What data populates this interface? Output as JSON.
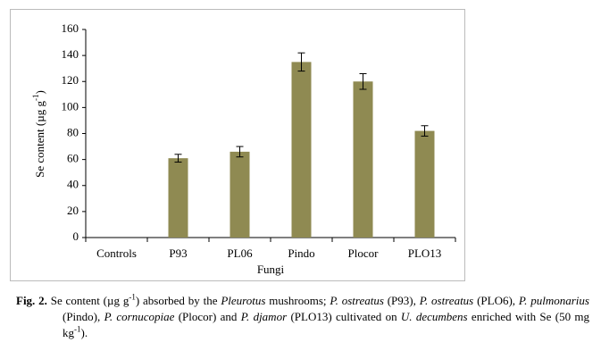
{
  "chart_data": {
    "type": "bar",
    "x_label": "Fungi",
    "y_label": "Se content  (µg g",
    "y_label_sup": "-1",
    "y_label_end": ")",
    "categories": [
      "Controls",
      "P93",
      "PL06",
      "Pindo",
      "Plocor",
      "PLO13"
    ],
    "values": [
      null,
      61,
      66,
      135,
      120,
      82
    ],
    "errors": [
      null,
      3,
      4,
      7,
      6,
      4
    ],
    "color": "#8f8a52",
    "ylim": [
      0,
      160
    ],
    "yticks": [
      0,
      20,
      40,
      60,
      80,
      100,
      120,
      140,
      160
    ]
  },
  "caption": {
    "runs": [
      "Fig. 2.",
      " Se content (µg g",
      "-1",
      ") absorbed by the ",
      "Pleurotus",
      " mushrooms; ",
      "P. ostreatus",
      " (P93), ",
      "P. ostreatus",
      " (PLO6), ",
      "P. pulmonarius",
      " (Pindo), ",
      "P. cornucopiae",
      " (Plocor) and ",
      "P. djamor",
      " (PLO13) cultivated on ",
      "U. decumbens",
      " enriched  with  Se (50 mg kg",
      "-1",
      ")."
    ]
  }
}
